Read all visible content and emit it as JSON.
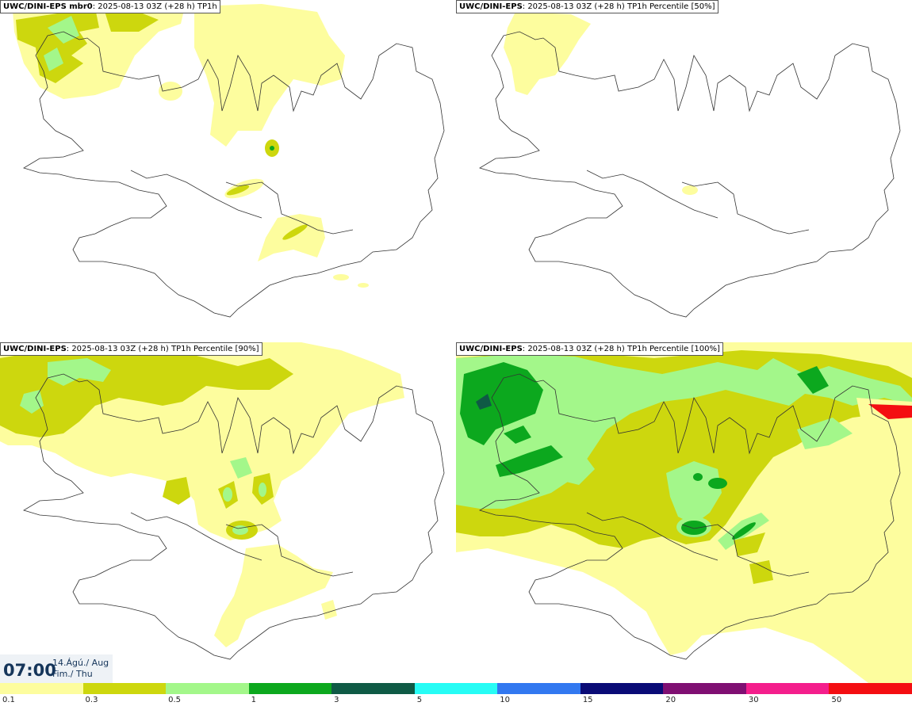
{
  "panels": [
    {
      "model": "UWC/DINI-EPS mbr0",
      "info": ": 2025-08-13 03Z (+28 h) TP1h"
    },
    {
      "model": "UWC/DINI-EPS",
      "info": ": 2025-08-13 03Z (+28 h) TP1h Percentile [50%]"
    },
    {
      "model": "UWC/DINI-EPS",
      "info": ": 2025-08-13 03Z (+28 h) TP1h Percentile [90%]"
    },
    {
      "model": "UWC/DINI-EPS",
      "info": ": 2025-08-13 03Z (+28 h) TP1h Percentile [100%]"
    }
  ],
  "valid_time": {
    "time": "07:00",
    "date_line1": "14.Ágú./ Aug",
    "date_line2": "Fim./ Thu"
  },
  "legend": {
    "ticks": [
      "0.1",
      "0.3",
      "0.5",
      "1",
      "3",
      "5",
      "10",
      "15",
      "20",
      "30",
      "50"
    ],
    "colors": [
      "#fdfd9e",
      "#cdd70e",
      "#a3f78a",
      "#0ca81e",
      "#0f5a45",
      "#27fcf5",
      "#3278f0",
      "#0a0b76",
      "#7f0f72",
      "#f41e8c",
      "#f40e12"
    ]
  }
}
